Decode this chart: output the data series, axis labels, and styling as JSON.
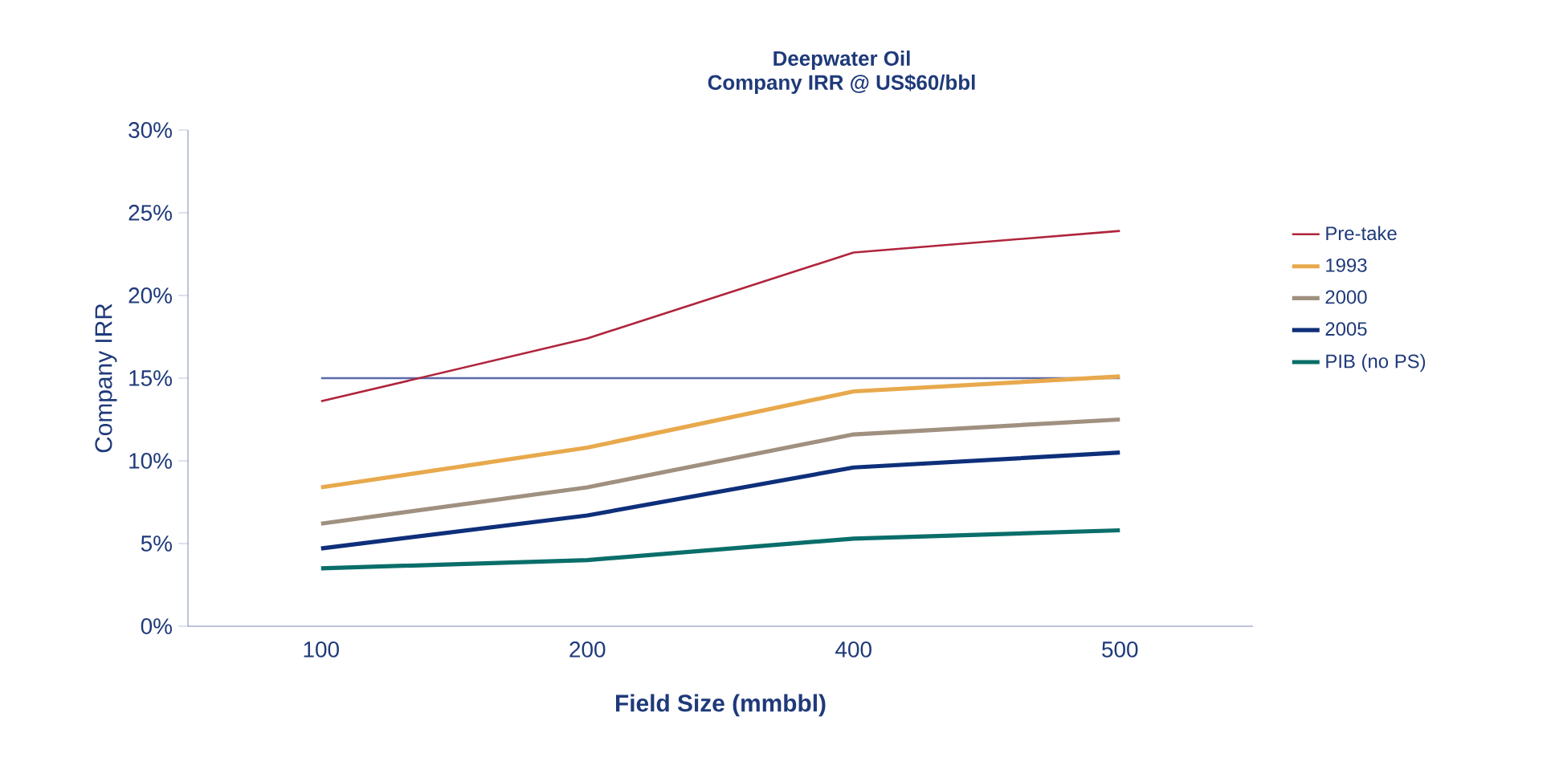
{
  "chart_data": {
    "type": "line",
    "title": "Deepwater Oil",
    "subtitle": "Company IRR @ US$60/bbl",
    "xlabel": "Field Size (mmbbl)",
    "ylabel": "Company IRR",
    "categories": [
      "100",
      "200",
      "400",
      "500"
    ],
    "series": [
      {
        "name": "Pre-take",
        "color": "#b0243c",
        "values": [
          13.6,
          17.4,
          22.6,
          23.9
        ]
      },
      {
        "name": "1993",
        "color": "#e8a94c",
        "values": [
          8.4,
          10.8,
          14.2,
          15.1
        ]
      },
      {
        "name": "2000",
        "color": "#a09080",
        "values": [
          6.2,
          8.4,
          11.6,
          12.5
        ]
      },
      {
        "name": "2005",
        "color": "#0e2f7a",
        "values": [
          4.7,
          6.7,
          9.6,
          10.5
        ]
      },
      {
        "name": "PIB (no PS)",
        "color": "#0a6e6a",
        "values": [
          3.5,
          4.0,
          5.3,
          5.8
        ]
      }
    ],
    "ylim": [
      0,
      30
    ],
    "yticks": [
      {
        "value": 0,
        "label": "0%"
      },
      {
        "value": 5,
        "label": "5%"
      },
      {
        "value": 10,
        "label": "10%"
      },
      {
        "value": 15,
        "label": "15%"
      },
      {
        "value": 20,
        "label": "20%"
      },
      {
        "value": 25,
        "label": "25%"
      },
      {
        "value": 30,
        "label": "30%"
      }
    ],
    "ref_lines": [
      {
        "axis": "y",
        "value": 15,
        "color": "#5a6aa8"
      }
    ],
    "grid": false,
    "legend": "right",
    "marker": "none",
    "line_style": "solid"
  }
}
